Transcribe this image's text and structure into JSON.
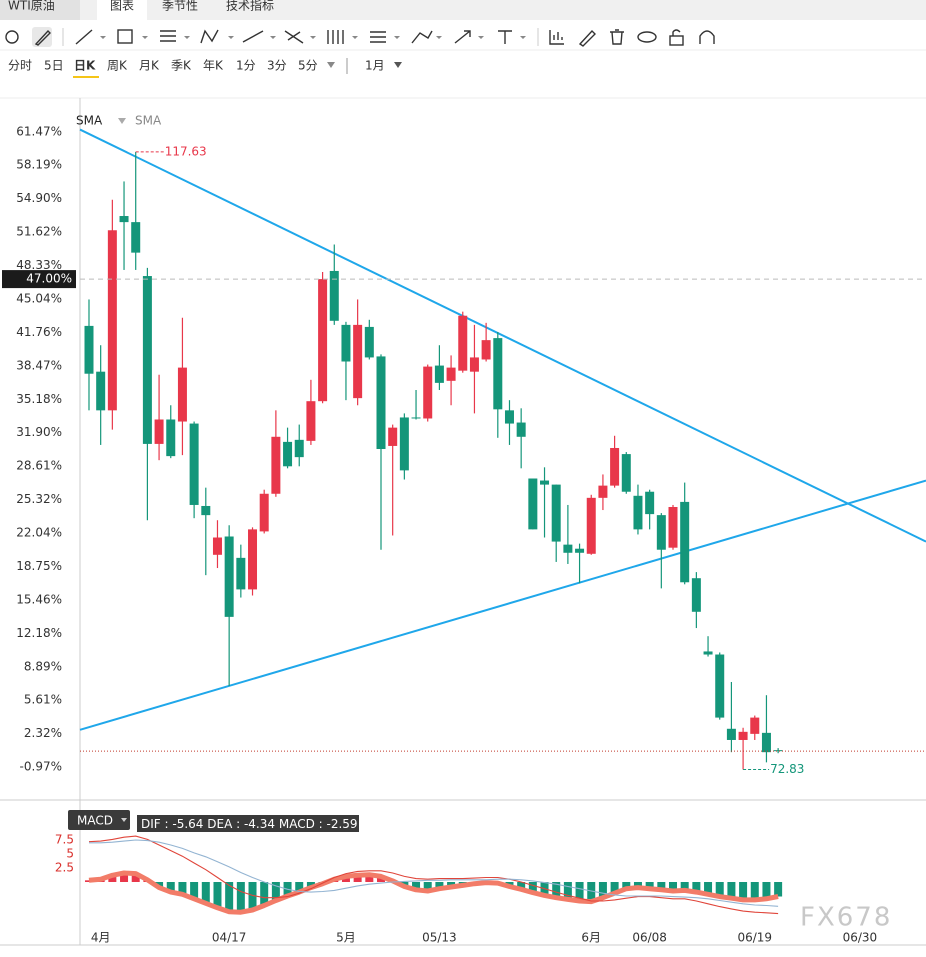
{
  "tabs": [
    "WTI原油",
    "图表",
    "季节性",
    "技术指标"
  ],
  "periods": [
    "分时",
    "5日",
    "日K",
    "周K",
    "月K",
    "季K",
    "年K",
    "1分",
    "3分",
    "5分"
  ],
  "active_period": 2,
  "range_selector": "1月",
  "watermark": "FX678",
  "chart_data": [
    {
      "type": "candlestick",
      "legend": [
        "SMA",
        "SMA"
      ],
      "up_color": "#e8374a",
      "down_color": "#14967a",
      "open": [
        42.4,
        37.9,
        34.1,
        53.2,
        52.6,
        47.3,
        30.8,
        33.2,
        33.0,
        32.8,
        24.7,
        19.9,
        21.7,
        19.6,
        16.5,
        22.2,
        25.9,
        31.0,
        31.2,
        31.1,
        35.0,
        47.8,
        42.5,
        35.3,
        42.3,
        39.4,
        30.6,
        33.4,
        33.4,
        33.3,
        38.5,
        37.0,
        38.0,
        37.9,
        39.1,
        41.2,
        34.1,
        32.9,
        27.4,
        27.2,
        26.8,
        20.9,
        20.5,
        20.0,
        25.5,
        26.7,
        29.8,
        25.7,
        26.1,
        23.8,
        20.6,
        25.1,
        17.6,
        10.4,
        10.1,
        2.8,
        1.7,
        2.3,
        2.4,
        0.7
      ],
      "high": [
        45.0,
        40.5,
        54.8,
        56.6,
        59.5,
        48.1,
        37.6,
        34.6,
        43.2,
        33.0,
        26.5,
        23.3,
        22.8,
        20.9,
        22.6,
        26.3,
        34.1,
        32.4,
        32.7,
        37.1,
        47.7,
        50.4,
        42.8,
        45.0,
        43.0,
        39.6,
        32.7,
        33.8,
        36.1,
        38.6,
        40.5,
        39.5,
        43.8,
        42.5,
        42.7,
        41.8,
        35.1,
        34.3,
        27.4,
        28.5,
        26.8,
        24.8,
        21.0,
        25.8,
        27.8,
        31.6,
        30.0,
        26.8,
        26.3,
        24.0,
        24.8,
        27.0,
        18.2,
        11.9,
        10.3,
        7.4,
        2.9,
        4.1,
        6.1,
        0.9
      ],
      "low": [
        34.1,
        30.7,
        32.2,
        47.9,
        47.9,
        23.3,
        29.2,
        29.4,
        29.7,
        23.5,
        17.9,
        18.6,
        7.0,
        15.7,
        15.9,
        22.0,
        25.6,
        28.4,
        28.6,
        30.7,
        34.8,
        42.5,
        35.1,
        34.6,
        39.1,
        20.4,
        21.8,
        27.3,
        33.2,
        33.0,
        36.1,
        34.6,
        37.8,
        33.8,
        38.9,
        31.4,
        30.7,
        28.4,
        22.4,
        21.6,
        19.2,
        19.0,
        17.1,
        19.9,
        24.3,
        26.5,
        25.9,
        21.9,
        22.4,
        16.6,
        20.4,
        17.0,
        12.7,
        9.9,
        3.7,
        0.5,
        -1.2,
        1.7,
        -0.5,
        0.4
      ],
      "close": [
        37.7,
        34.1,
        51.8,
        52.6,
        49.6,
        30.8,
        33.2,
        29.6,
        38.3,
        24.8,
        23.8,
        21.6,
        13.8,
        16.5,
        22.4,
        25.9,
        31.5,
        28.6,
        29.5,
        35.0,
        47.0,
        42.9,
        38.9,
        42.5,
        39.3,
        30.3,
        32.4,
        28.2,
        33.3,
        38.4,
        36.8,
        38.3,
        43.4,
        39.3,
        41.0,
        34.2,
        32.8,
        31.5,
        22.4,
        26.8,
        21.2,
        20.1,
        20.1,
        25.5,
        26.7,
        30.4,
        26.1,
        22.4,
        23.9,
        20.4,
        24.6,
        17.2,
        14.3,
        10.1,
        3.9,
        1.7,
        2.5,
        3.9,
        0.5,
        0.6
      ],
      "max_label": "117.63",
      "min_label": "72.83",
      "xlim": [
        -0.77,
        71.66
      ],
      "ylim": [
        -4.2,
        64.8
      ],
      "yticks": [
        {
          "value": 61.47,
          "label": "61.47%"
        },
        {
          "value": 58.19,
          "label": "58.19%"
        },
        {
          "value": 54.9,
          "label": "54.90%"
        },
        {
          "value": 51.62,
          "label": "51.62%"
        },
        {
          "value": 48.33,
          "label": "48.33%"
        },
        {
          "value": 45.04,
          "label": "45.04%"
        },
        {
          "value": 41.76,
          "label": "41.76%"
        },
        {
          "value": 38.47,
          "label": "38.47%"
        },
        {
          "value": 35.18,
          "label": "35.18%"
        },
        {
          "value": 31.9,
          "label": "31.90%"
        },
        {
          "value": 28.61,
          "label": "28.61%"
        },
        {
          "value": 25.32,
          "label": "25.32%"
        },
        {
          "value": 22.04,
          "label": "22.04%"
        },
        {
          "value": 18.75,
          "label": "18.75%"
        },
        {
          "value": 15.46,
          "label": "15.46%"
        },
        {
          "value": 12.18,
          "label": "12.18%"
        },
        {
          "value": 8.89,
          "label": "8.89%"
        },
        {
          "value": 5.61,
          "label": "5.61%"
        },
        {
          "value": 2.32,
          "label": "2.32%"
        },
        {
          "value": -0.97,
          "label": "-0.97%"
        }
      ],
      "crosshair": {
        "value": 47.0,
        "label": "47.00%"
      },
      "last_price_line": true,
      "trendlines": [
        {
          "color": "#1fa7ea",
          "x": [
            -0.77,
            71.66
          ],
          "y": [
            61.7,
            21.2
          ]
        },
        {
          "color": "#1fa7ea",
          "x": [
            -0.77,
            71.66
          ],
          "y": [
            2.7,
            27.2
          ]
        }
      ],
      "grid": false
    },
    {
      "type": "macd",
      "indicator_label": "MACD",
      "xlim": [
        -0.77,
        71.66
      ],
      "ylim": [
        -11.25,
        13.75
      ],
      "yticks": [
        2.5,
        5,
        7.5
      ],
      "xticks": [
        {
          "value": 1,
          "label": "4月"
        },
        {
          "value": 12,
          "label": "04/17"
        },
        {
          "value": 22,
          "label": "5月"
        },
        {
          "value": 30,
          "label": "05/13"
        },
        {
          "value": 43,
          "label": "6月"
        },
        {
          "value": 48,
          "label": "06/08"
        },
        {
          "value": 57,
          "label": "06/19"
        },
        {
          "value": 66,
          "label": "06/30"
        }
      ],
      "series": [
        {
          "name": "DIF",
          "readout": "-5.64",
          "color": "#e0453a",
          "values": [
            7.2,
            7.3,
            7.6,
            8.0,
            8.2,
            7.6,
            6.6,
            5.6,
            4.6,
            3.4,
            2.2,
            0.8,
            -0.6,
            -1.7,
            -2.4,
            -2.8,
            -2.8,
            -2.6,
            -2.0,
            -1.2,
            -0.2,
            0.8,
            1.5,
            1.9,
            2.0,
            2.0,
            1.6,
            1.0,
            0.6,
            0.5,
            0.6,
            0.6,
            0.6,
            0.7,
            0.8,
            0.8,
            0.5,
            0.0,
            -0.6,
            -1.2,
            -1.8,
            -2.4,
            -2.9,
            -3.4,
            -3.4,
            -3.2,
            -2.9,
            -2.6,
            -2.6,
            -2.8,
            -3.0,
            -3.0,
            -3.4,
            -3.9,
            -4.4,
            -4.8,
            -5.2,
            -5.4,
            -5.5,
            -5.64
          ]
        },
        {
          "name": "DEA",
          "readout": "-4.34",
          "color": "#93b4d2",
          "values": [
            7.0,
            7.0,
            7.1,
            7.3,
            7.5,
            7.4,
            7.1,
            6.6,
            6.0,
            5.2,
            4.5,
            3.6,
            2.7,
            1.7,
            0.8,
            0.0,
            -0.7,
            -1.3,
            -1.7,
            -1.8,
            -1.7,
            -1.5,
            -1.1,
            -0.7,
            -0.4,
            -0.2,
            0.0,
            0.1,
            0.2,
            0.3,
            0.3,
            0.4,
            0.4,
            0.4,
            0.4,
            0.5,
            0.5,
            0.4,
            0.2,
            -0.1,
            -0.4,
            -0.8,
            -1.2,
            -1.6,
            -2.0,
            -2.3,
            -2.5,
            -2.5,
            -2.5,
            -2.5,
            -2.6,
            -2.7,
            -2.8,
            -3.0,
            -3.3,
            -3.6,
            -3.9,
            -4.1,
            -4.2,
            -4.34
          ]
        },
        {
          "name": "MACD",
          "readout": "-2.59",
          "up_color": "#e8374a",
          "down_color": "#14967a",
          "line_color": "#f27c68",
          "values": [
            0.3,
            0.5,
            1.2,
            1.6,
            1.5,
            0.4,
            -1.0,
            -1.8,
            -2.2,
            -3.0,
            -3.8,
            -4.6,
            -5.3,
            -5.4,
            -5.0,
            -4.2,
            -3.3,
            -2.5,
            -1.8,
            -1.0,
            -0.3,
            0.5,
            1.0,
            1.2,
            1.3,
            1.0,
            0.2,
            -0.8,
            -1.4,
            -1.6,
            -1.2,
            -0.9,
            -0.6,
            -0.3,
            -0.1,
            -0.2,
            -0.8,
            -1.3,
            -1.9,
            -2.4,
            -2.8,
            -3.1,
            -3.4,
            -3.5,
            -2.8,
            -2.0,
            -1.2,
            -1.0,
            -1.2,
            -1.4,
            -1.6,
            -1.5,
            -1.8,
            -2.2,
            -2.6,
            -2.9,
            -3.2,
            -3.2,
            -3.0,
            -2.59
          ]
        }
      ]
    }
  ]
}
